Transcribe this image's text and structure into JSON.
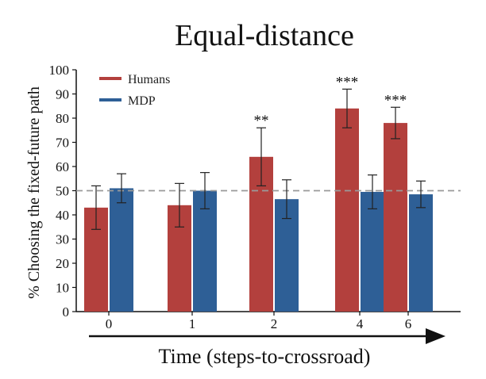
{
  "chart_data": {
    "type": "bar",
    "title": "Equal-distance",
    "xlabel": "Time (steps-to-crossroad)",
    "ylabel": "% Choosing the fixed-future path",
    "categories": [
      "0",
      "1",
      "2",
      "4",
      "6"
    ],
    "ylim": [
      0,
      100
    ],
    "yticks": [
      "0",
      "10",
      "20",
      "30",
      "40",
      "50",
      "60",
      "70",
      "80",
      "90",
      "100"
    ],
    "reference_line": 50,
    "legend_position": "top-left",
    "series": [
      {
        "name": "Humans",
        "color": "#b3403d",
        "values": [
          43,
          44,
          64,
          84,
          78
        ],
        "errors": [
          9,
          9,
          12,
          8,
          6.5
        ],
        "significance": [
          "",
          "",
          "**",
          "***",
          "***"
        ]
      },
      {
        "name": "MDP",
        "color": "#2e5f96",
        "values": [
          51,
          50,
          46.5,
          49.5,
          48.5
        ],
        "errors": [
          6,
          7.5,
          8,
          7,
          5.5
        ],
        "significance": [
          "",
          "",
          "",
          "",
          ""
        ]
      }
    ]
  }
}
